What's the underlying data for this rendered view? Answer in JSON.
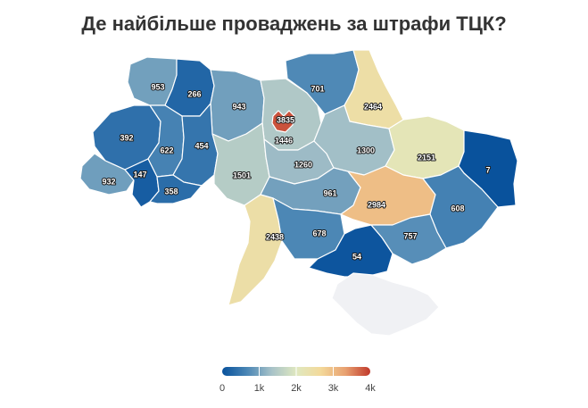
{
  "title": "Де найбільше проваджень за штрафи ТЦК?",
  "map_data": {
    "type": "choropleth",
    "regions": [
      {
        "id": "volyn",
        "value": 953
      },
      {
        "id": "rivne",
        "value": 266
      },
      {
        "id": "zhytomyr",
        "value": 943
      },
      {
        "id": "kyiv-oblast",
        "value": 1446
      },
      {
        "id": "kyiv-city",
        "value": 3835
      },
      {
        "id": "chernihiv",
        "value": 701
      },
      {
        "id": "sumy",
        "value": 2464
      },
      {
        "id": "lviv",
        "value": 392
      },
      {
        "id": "ternopil",
        "value": 622
      },
      {
        "id": "khmelnytskyi",
        "value": 454
      },
      {
        "id": "zakarpattia",
        "value": 932
      },
      {
        "id": "ivano-frankivsk",
        "value": 147
      },
      {
        "id": "chernivtsi",
        "value": 358
      },
      {
        "id": "vinnytsia",
        "value": 1501
      },
      {
        "id": "cherkasy",
        "value": 1260
      },
      {
        "id": "poltava",
        "value": 1300
      },
      {
        "id": "kharkiv",
        "value": 2151
      },
      {
        "id": "luhansk",
        "value": 7
      },
      {
        "id": "kirovohrad",
        "value": 961
      },
      {
        "id": "dnipropetrovsk",
        "value": 2984
      },
      {
        "id": "donetsk",
        "value": 608
      },
      {
        "id": "odesa",
        "value": 2438
      },
      {
        "id": "mykolaiv",
        "value": 678
      },
      {
        "id": "kherson",
        "value": 54
      },
      {
        "id": "zaporizhzhia",
        "value": 757
      },
      {
        "id": "crimea",
        "value": null
      }
    ],
    "color_scale": {
      "min": 0,
      "max": 4000,
      "stops": [
        "#08519c",
        "#4a86b5",
        "#a7c2c8",
        "#dfe8c0",
        "#f3d99a",
        "#e8a070",
        "#c0392b"
      ],
      "no_data_color": "#f0f1f4"
    },
    "legend": {
      "ticks": [
        0,
        1000,
        2000,
        3000,
        4000
      ],
      "tick_labels": [
        "0",
        "1k",
        "2k",
        "3k",
        "4k"
      ],
      "position": "bottom-center"
    }
  }
}
